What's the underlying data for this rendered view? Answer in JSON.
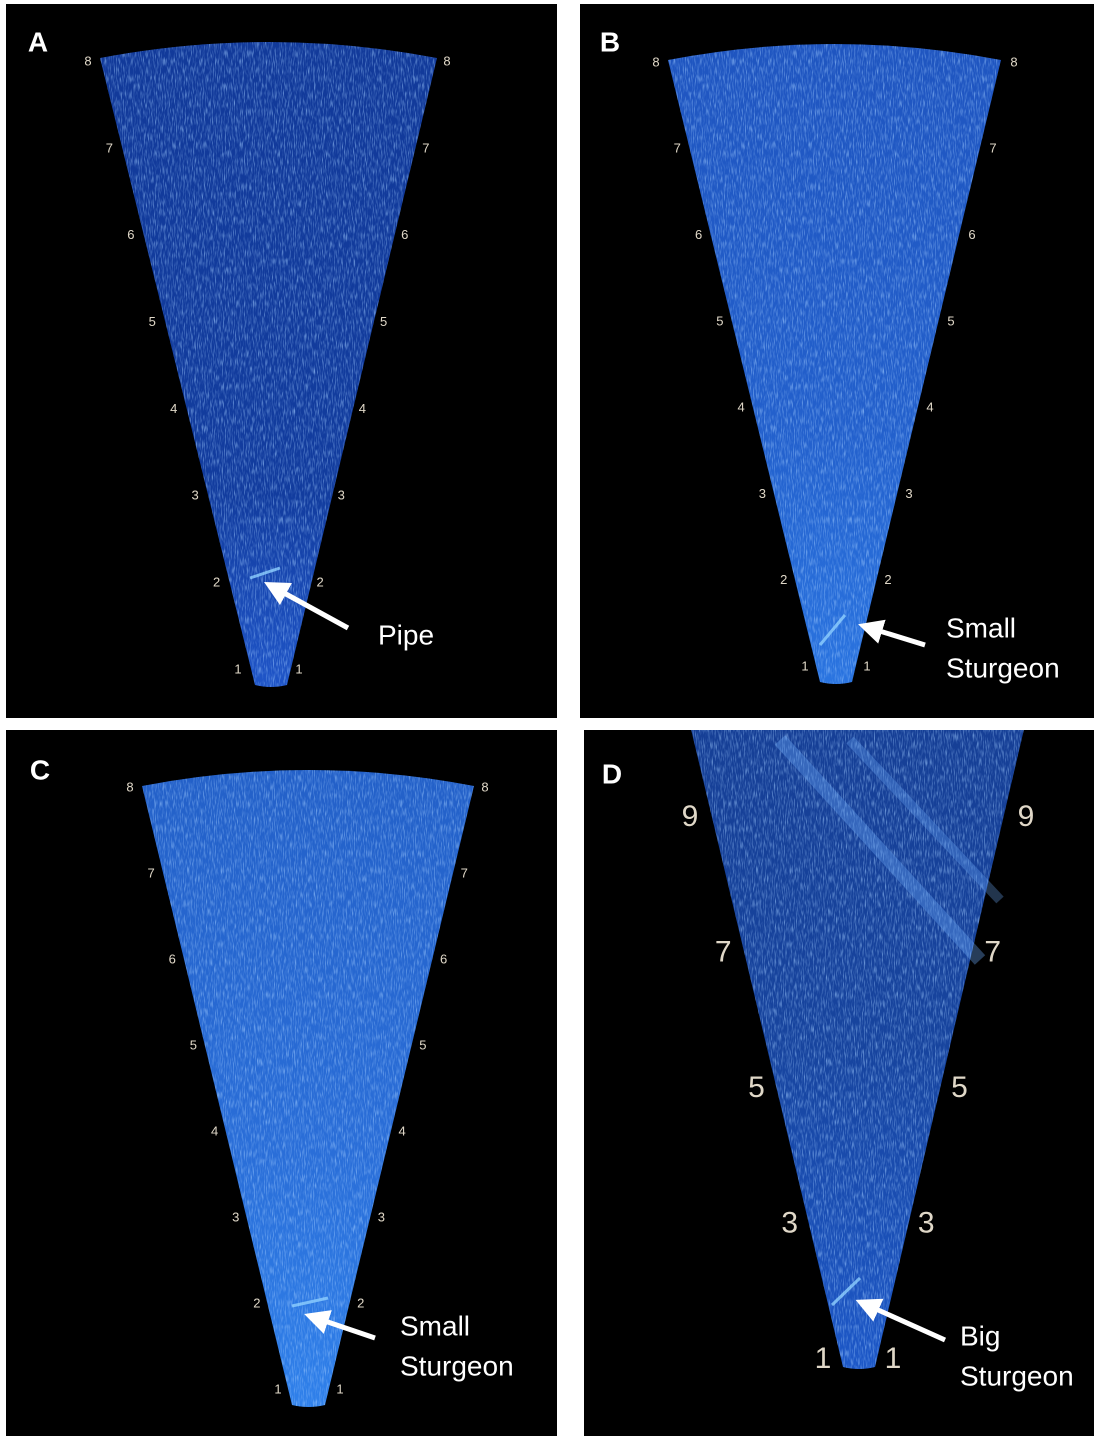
{
  "panels": [
    {
      "label": "A",
      "range_labels_left": [
        "1",
        "2",
        "3",
        "4",
        "5",
        "6",
        "7",
        "8"
      ],
      "range_labels_right": [
        "1",
        "2",
        "3",
        "4",
        "5",
        "6",
        "7",
        "8"
      ],
      "annotation": [
        "Pipe"
      ]
    },
    {
      "label": "B",
      "range_labels_left": [
        "1",
        "2",
        "3",
        "4",
        "5",
        "6",
        "7",
        "8"
      ],
      "range_labels_right": [
        "1",
        "2",
        "3",
        "4",
        "5",
        "6",
        "7",
        "8"
      ],
      "annotation": [
        "Small",
        "Sturgeon"
      ]
    },
    {
      "label": "C",
      "range_labels_left": [
        "1",
        "2",
        "3",
        "4",
        "5",
        "6",
        "7",
        "8"
      ],
      "range_labels_right": [
        "1",
        "2",
        "3",
        "4",
        "5",
        "6",
        "7",
        "8"
      ],
      "annotation": [
        "Small",
        "Sturgeon"
      ]
    },
    {
      "label": "D",
      "range_labels_left": [
        "1",
        "3",
        "5",
        "7",
        "9"
      ],
      "range_labels_right": [
        "1",
        "3",
        "5",
        "7",
        "9"
      ],
      "annotation": [
        "Big",
        "Sturgeon"
      ]
    }
  ]
}
